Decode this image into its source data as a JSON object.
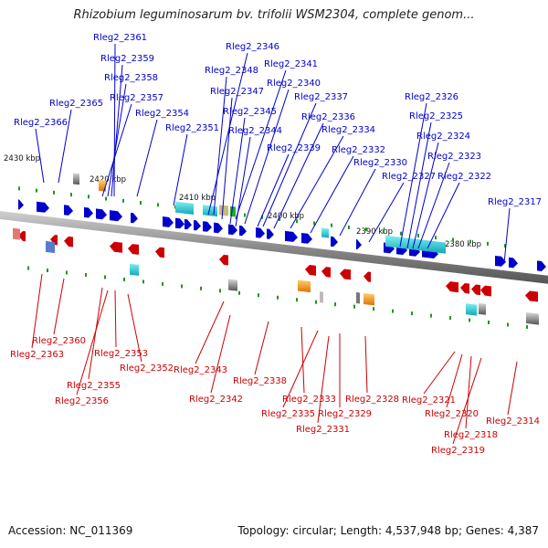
{
  "title": "Rhizobium leguminosarum bv. trifolii WSM2304, complete genom...",
  "footer": {
    "accession": "Accession: NC_011369",
    "summary": "Topology: circular; Length: 4,537,948 bp; Genes: 4,387"
  },
  "colors": {
    "forward": "#0000cc",
    "reverse": "#cc0000",
    "backbone": "#808080"
  },
  "kbp_labels": [
    "2430 kbp",
    "2420 kbp",
    "2410 kbp",
    "2400 kbp",
    "2390 kbp",
    "2380 kbp"
  ],
  "top_labels": [
    "Rleg2_2361",
    "Rleg2_2359",
    "Rleg2_2358",
    "Rleg2_2357",
    "Rleg2_2365",
    "Rleg2_2354",
    "Rleg2_2366",
    "Rleg2_2351",
    "Rleg2_2346",
    "Rleg2_2348",
    "Rleg2_2341",
    "Rleg2_2347",
    "Rleg2_2340",
    "Rleg2_2345",
    "Rleg2_2337",
    "Rleg2_2344",
    "Rleg2_2336",
    "Rleg2_2334",
    "Rleg2_2339",
    "Rleg2_2332",
    "Rleg2_2330",
    "Rleg2_2327",
    "Rleg2_2326",
    "Rleg2_2325",
    "Rleg2_2324",
    "Rleg2_2323",
    "Rleg2_2322",
    "Rleg2_2317"
  ],
  "bottom_labels": [
    "Rleg2_2360",
    "Rleg2_2363",
    "Rleg2_2353",
    "Rleg2_2352",
    "Rleg2_2355",
    "Rleg2_2356",
    "Rleg2_2343",
    "Rleg2_2342",
    "Rleg2_2338",
    "Rleg2_2333",
    "Rleg2_2335",
    "Rleg2_2328",
    "Rleg2_2329",
    "Rleg2_2331",
    "Rleg2_2321",
    "Rleg2_2320",
    "Rleg2_2318",
    "Rleg2_2319",
    "Rleg2_2314"
  ]
}
